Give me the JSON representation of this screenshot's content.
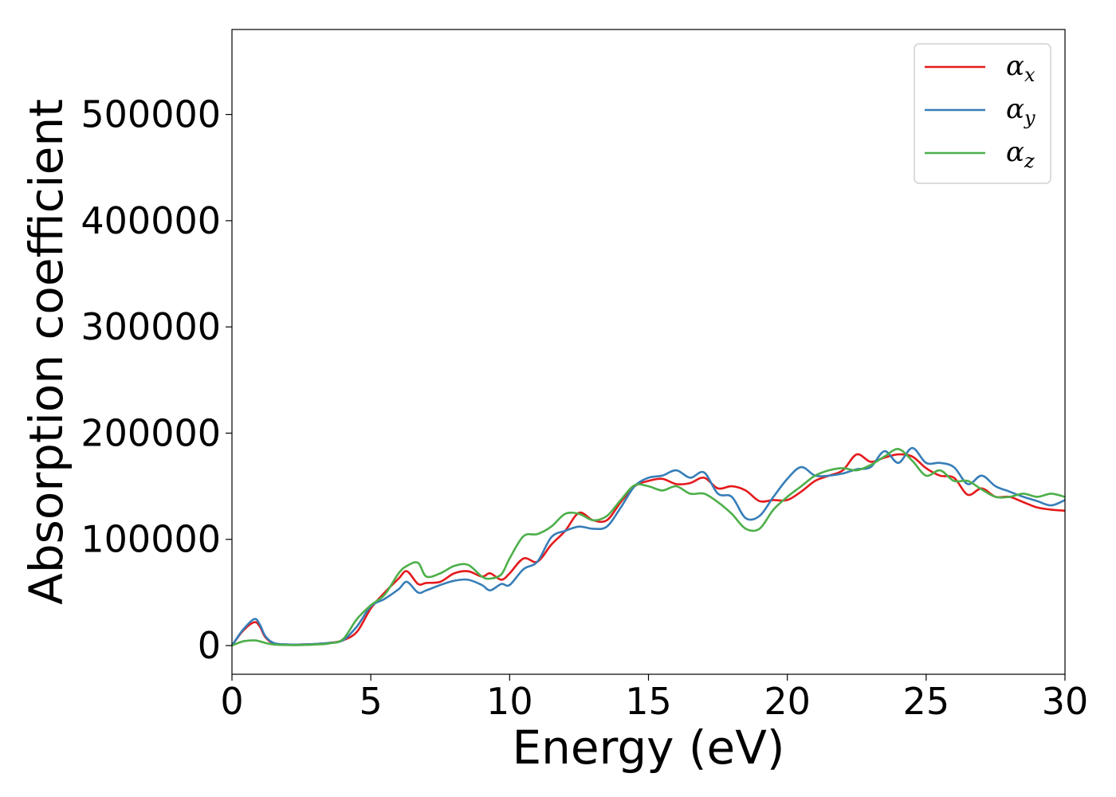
{
  "chart_data": {
    "type": "line",
    "title": "",
    "xlabel": "Energy (eV)",
    "ylabel": "Absorption coefficient",
    "xlim": [
      0,
      30
    ],
    "ylim": [
      -27000,
      580000
    ],
    "xticks": [
      0,
      5,
      10,
      15,
      20,
      25,
      30
    ],
    "yticks": [
      0,
      100000,
      200000,
      300000,
      400000,
      500000
    ],
    "grid": false,
    "legend_position": "top-right",
    "series": [
      {
        "name": "α",
        "subscript": "x",
        "color": "#e41a1c",
        "x": [
          0,
          0.4,
          0.8,
          1.0,
          1.2,
          1.5,
          2,
          2.5,
          3,
          3.5,
          4,
          4.5,
          5,
          5.5,
          6,
          6.3,
          6.7,
          7,
          7.5,
          8,
          8.5,
          9,
          9.3,
          9.7,
          10,
          10.5,
          11,
          11.5,
          12,
          12.5,
          13,
          13.5,
          14,
          14.5,
          15,
          15.5,
          16,
          16.5,
          17,
          17.5,
          18,
          18.5,
          19,
          19.5,
          20,
          20.5,
          21,
          21.5,
          22,
          22.5,
          23,
          23.5,
          24,
          24.5,
          25,
          25.5,
          26,
          26.5,
          27,
          27.5,
          28,
          28.5,
          29,
          29.5,
          30
        ],
        "y": [
          0,
          14000,
          22000,
          18000,
          8000,
          2000,
          1000,
          1000,
          1500,
          2500,
          5000,
          13000,
          35000,
          50000,
          63000,
          70000,
          58000,
          59000,
          60000,
          68000,
          70000,
          65000,
          68000,
          62000,
          68000,
          82000,
          79000,
          95000,
          108000,
          125000,
          118000,
          118000,
          135000,
          150000,
          155000,
          157000,
          152000,
          153000,
          158000,
          148000,
          150000,
          146000,
          136000,
          137000,
          137000,
          145000,
          155000,
          160000,
          165000,
          180000,
          173000,
          177000,
          180000,
          178000,
          167000,
          160000,
          158000,
          142000,
          148000,
          140000,
          140000,
          135000,
          130000,
          128000,
          127000
        ]
      },
      {
        "name": "α",
        "subscript": "y",
        "color": "#377eb8",
        "x": [
          0,
          0.4,
          0.8,
          1.0,
          1.2,
          1.5,
          2,
          2.5,
          3,
          3.5,
          4,
          4.5,
          5,
          5.5,
          6,
          6.3,
          6.7,
          7,
          7.5,
          8,
          8.5,
          9,
          9.3,
          9.7,
          10,
          10.5,
          11,
          11.5,
          12,
          12.5,
          13,
          13.5,
          14,
          14.5,
          15,
          15.5,
          16,
          16.5,
          17,
          17.5,
          18,
          18.5,
          19,
          19.5,
          20,
          20.5,
          21,
          21.5,
          22,
          22.5,
          23,
          23.5,
          24,
          24.5,
          25,
          25.5,
          26,
          26.5,
          27,
          27.5,
          28,
          28.5,
          29,
          29.5,
          30
        ],
        "y": [
          0,
          15000,
          25000,
          20000,
          9000,
          2500,
          1000,
          1000,
          1500,
          2500,
          5000,
          18000,
          37000,
          44000,
          53000,
          60000,
          50000,
          52000,
          57000,
          61000,
          62000,
          57000,
          52000,
          58000,
          57000,
          72000,
          79000,
          102000,
          108000,
          112000,
          110000,
          112000,
          130000,
          150000,
          158000,
          160000,
          165000,
          158000,
          163000,
          143000,
          140000,
          120000,
          122000,
          140000,
          157000,
          168000,
          160000,
          160000,
          162000,
          166000,
          168000,
          183000,
          172000,
          186000,
          172000,
          172000,
          168000,
          152000,
          160000,
          150000,
          145000,
          140000,
          136000,
          132000,
          137000
        ]
      },
      {
        "name": "α",
        "subscript": "z",
        "color": "#4daf4a",
        "x": [
          0,
          0.4,
          0.8,
          1.0,
          1.2,
          1.5,
          2,
          2.5,
          3,
          3.5,
          4,
          4.5,
          5,
          5.5,
          6,
          6.3,
          6.7,
          7,
          7.5,
          8,
          8.5,
          9,
          9.3,
          9.7,
          10,
          10.5,
          11,
          11.5,
          12,
          12.5,
          13,
          13.5,
          14,
          14.5,
          15,
          15.5,
          16,
          16.5,
          17,
          17.5,
          18,
          18.5,
          19,
          19.5,
          20,
          20.5,
          21,
          21.5,
          22,
          22.5,
          23,
          23.5,
          24,
          24.5,
          25,
          25.5,
          26,
          26.5,
          27,
          27.5,
          28,
          28.5,
          29,
          29.5,
          30
        ],
        "y": [
          0,
          4000,
          5000,
          4000,
          2500,
          1000,
          500,
          500,
          1000,
          2000,
          6000,
          25000,
          38000,
          48000,
          68000,
          75000,
          78000,
          65000,
          68000,
          75000,
          76000,
          65000,
          63000,
          67000,
          82000,
          103000,
          105000,
          112000,
          124000,
          124000,
          118000,
          122000,
          137000,
          151000,
          150000,
          146000,
          150000,
          143000,
          143000,
          135000,
          124000,
          110000,
          110000,
          128000,
          140000,
          150000,
          160000,
          165000,
          167000,
          165000,
          170000,
          178000,
          185000,
          174000,
          160000,
          165000,
          155000,
          155000,
          147000,
          140000,
          140000,
          143000,
          140000,
          143000,
          140000
        ]
      }
    ]
  }
}
